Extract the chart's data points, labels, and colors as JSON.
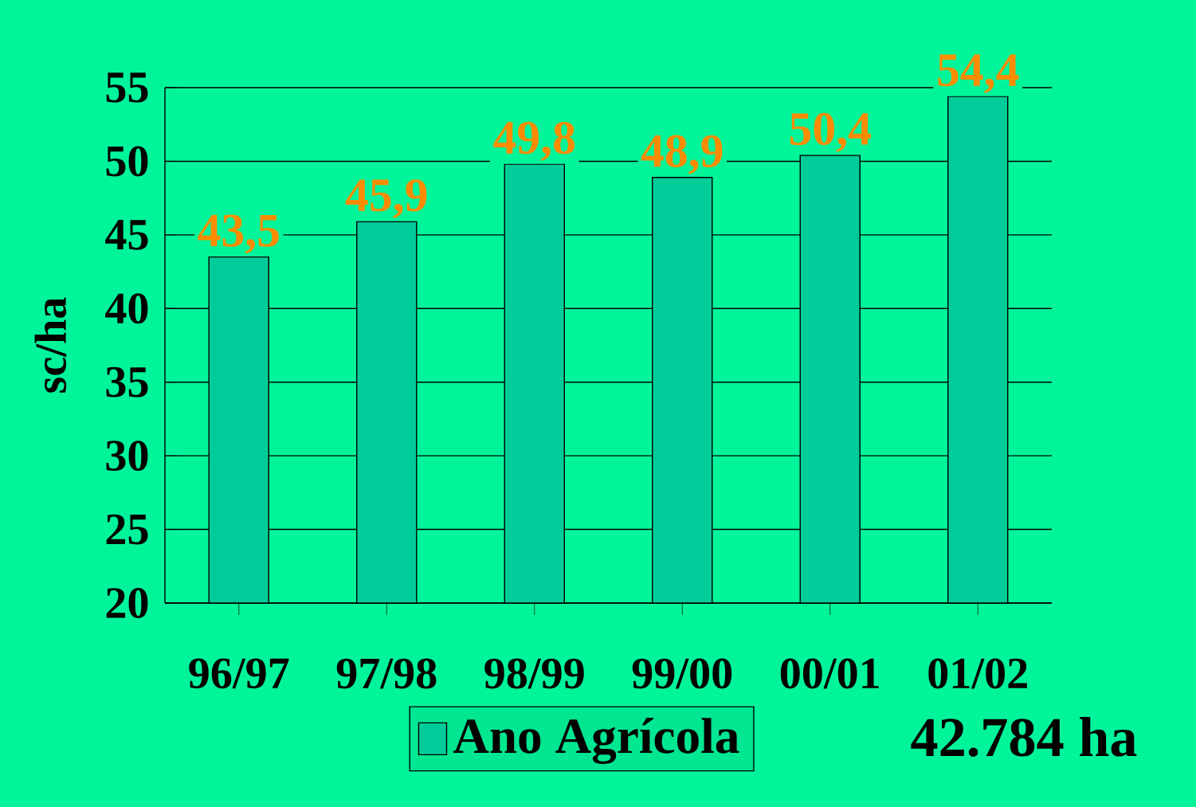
{
  "chart_data": {
    "type": "bar",
    "ylabel": "sc/ha",
    "categories": [
      "96/97",
      "97/98",
      "98/99",
      "99/00",
      "00/01",
      "01/02"
    ],
    "series": [
      {
        "name": "Ano Agrícola",
        "color": "#00cc99",
        "values": [
          43.5,
          45.9,
          49.8,
          48.9,
          50.4,
          54.4
        ],
        "value_labels": [
          "43,5",
          "45,9",
          "49,8",
          "48,9",
          "50,4",
          "54,4"
        ]
      }
    ],
    "ylim": [
      20,
      55
    ],
    "yticks": [
      20,
      25,
      30,
      35,
      40,
      45,
      50,
      55
    ],
    "grid": "y",
    "legend": "bottom",
    "annotations": [
      "42.784 ha"
    ]
  }
}
